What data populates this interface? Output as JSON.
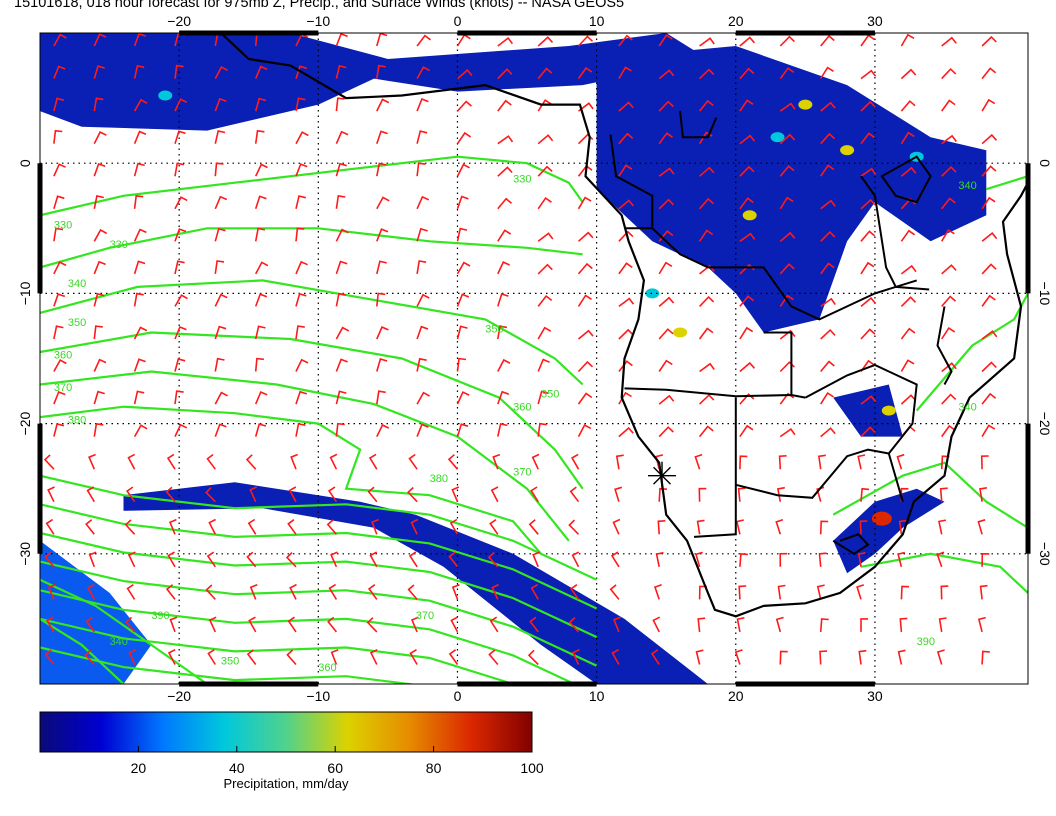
{
  "title": "15101618, 018 hour forecast for 975mb Z, Precip., and Surface Winds (knots) -- NASA GEOS5",
  "map": {
    "lon_range": [
      -30,
      41
    ],
    "lat_range": [
      -40,
      10
    ],
    "lon_ticks": [
      -20,
      -10,
      0,
      10,
      20,
      30
    ],
    "lon_tick_labels": [
      "−20",
      "−10",
      "0",
      "10",
      "20",
      "30"
    ],
    "lat_ticks": [
      0,
      -10,
      -20,
      -30
    ],
    "lat_tick_labels": [
      "0",
      "−10",
      "−20",
      "−30"
    ],
    "contour_labels": [
      "330",
      "330",
      "330",
      "340",
      "350",
      "350",
      "350",
      "360",
      "360",
      "370",
      "370",
      "380",
      "380",
      "390",
      "340",
      "350",
      "360",
      "370",
      "340",
      "390",
      "340"
    ],
    "colors": {
      "contour": "#33e61f",
      "wind_barb": "#ff1a1a",
      "coast": "#000000",
      "grid": "#000000"
    },
    "marker_symbol": "asterisk"
  },
  "colorbar": {
    "title": "Precipitation, mm/day",
    "ticks": [
      20,
      40,
      60,
      80,
      100
    ],
    "tick_labels": [
      "20",
      "40",
      "60",
      "80",
      "100"
    ],
    "range": [
      0,
      100
    ],
    "colors": [
      "#0a0a78",
      "#0000d2",
      "#0078ff",
      "#00c8dc",
      "#50d28c",
      "#dcd200",
      "#e68c00",
      "#dc2800",
      "#820000"
    ]
  }
}
